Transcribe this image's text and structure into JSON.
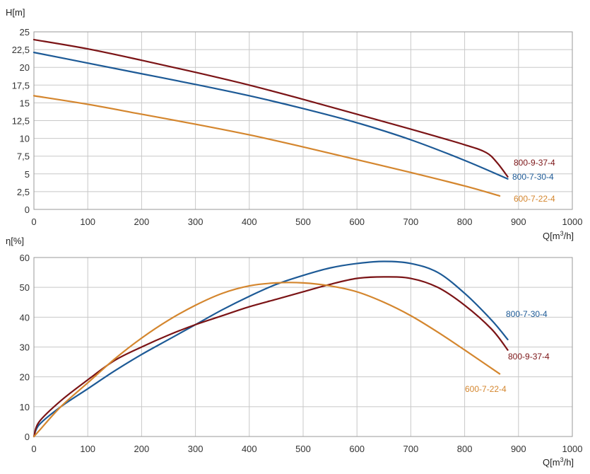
{
  "chart_data": [
    {
      "type": "line",
      "title": "",
      "ylabel": "H[m]",
      "xlabel_prefix": "Q[m",
      "xlabel_sup": "3",
      "xlabel_suffix": "/h]",
      "xlim": [
        0,
        1000
      ],
      "ylim": [
        0,
        25
      ],
      "x_ticks": [
        "0",
        "100",
        "200",
        "300",
        "400",
        "500",
        "600",
        "700",
        "800",
        "900",
        "1000"
      ],
      "y_ticks": [
        "0",
        "2,5",
        "5",
        "7,5",
        "10",
        "12,5",
        "15",
        "17,5",
        "20",
        "22,5",
        "25"
      ],
      "grid": true,
      "series": [
        {
          "name": "800-9-37-4",
          "color": "#7b1416",
          "x": [
            0,
            100,
            200,
            300,
            400,
            500,
            600,
            700,
            800,
            840,
            860,
            880
          ],
          "y": [
            23.9,
            22.6,
            21.0,
            19.3,
            17.5,
            15.5,
            13.4,
            11.3,
            9.1,
            8.0,
            6.6,
            4.6
          ]
        },
        {
          "name": "800-7-30-4",
          "color": "#1d5a96",
          "x": [
            0,
            100,
            200,
            300,
            400,
            500,
            600,
            700,
            800,
            880
          ],
          "y": [
            22.1,
            20.6,
            19.1,
            17.6,
            16.0,
            14.2,
            12.2,
            9.8,
            6.9,
            4.3
          ]
        },
        {
          "name": "600-7-22-4",
          "color": "#d4862e",
          "x": [
            0,
            100,
            200,
            300,
            400,
            500,
            600,
            700,
            800,
            865
          ],
          "y": [
            16.0,
            14.8,
            13.4,
            12.0,
            10.5,
            8.8,
            7.0,
            5.2,
            3.3,
            1.9
          ]
        }
      ]
    },
    {
      "type": "line",
      "title": "",
      "ylabel": "η[%]",
      "xlabel_prefix": "Q[m",
      "xlabel_sup": "3",
      "xlabel_suffix": "/h]",
      "xlim": [
        0,
        1000
      ],
      "ylim": [
        0,
        60
      ],
      "x_ticks": [
        "0",
        "100",
        "200",
        "300",
        "400",
        "500",
        "600",
        "700",
        "800",
        "900",
        "1000"
      ],
      "y_ticks": [
        "0",
        "10",
        "20",
        "30",
        "40",
        "50",
        "60"
      ],
      "grid": true,
      "series": [
        {
          "name": "800-7-30-4",
          "color": "#1d5a96",
          "x": [
            0,
            10,
            50,
            100,
            150,
            200,
            250,
            300,
            350,
            400,
            450,
            500,
            550,
            600,
            650,
            700,
            750,
            800,
            850,
            880
          ],
          "y": [
            0,
            4,
            10,
            16,
            22,
            27.5,
            32.5,
            37.5,
            42.5,
            47,
            51,
            54,
            56.5,
            58,
            58.7,
            58,
            55,
            48,
            39,
            32.5
          ]
        },
        {
          "name": "800-9-37-4",
          "color": "#7b1416",
          "x": [
            0,
            10,
            50,
            100,
            150,
            200,
            250,
            300,
            350,
            400,
            450,
            500,
            550,
            600,
            650,
            700,
            750,
            800,
            850,
            880
          ],
          "y": [
            0,
            5,
            12,
            19,
            25.5,
            30,
            34,
            37.5,
            40.5,
            43.5,
            46,
            48.5,
            51,
            53,
            53.5,
            53,
            50,
            44,
            36,
            29
          ]
        },
        {
          "name": "600-7-22-4",
          "color": "#d4862e",
          "x": [
            0,
            10,
            50,
            100,
            150,
            200,
            250,
            300,
            350,
            400,
            450,
            500,
            550,
            600,
            650,
            700,
            750,
            800,
            865
          ],
          "y": [
            0,
            2,
            10,
            18,
            26,
            33,
            39,
            44,
            48,
            50.5,
            51.5,
            51.5,
            50.5,
            48.5,
            45,
            40.5,
            35,
            29,
            21
          ]
        }
      ]
    }
  ]
}
